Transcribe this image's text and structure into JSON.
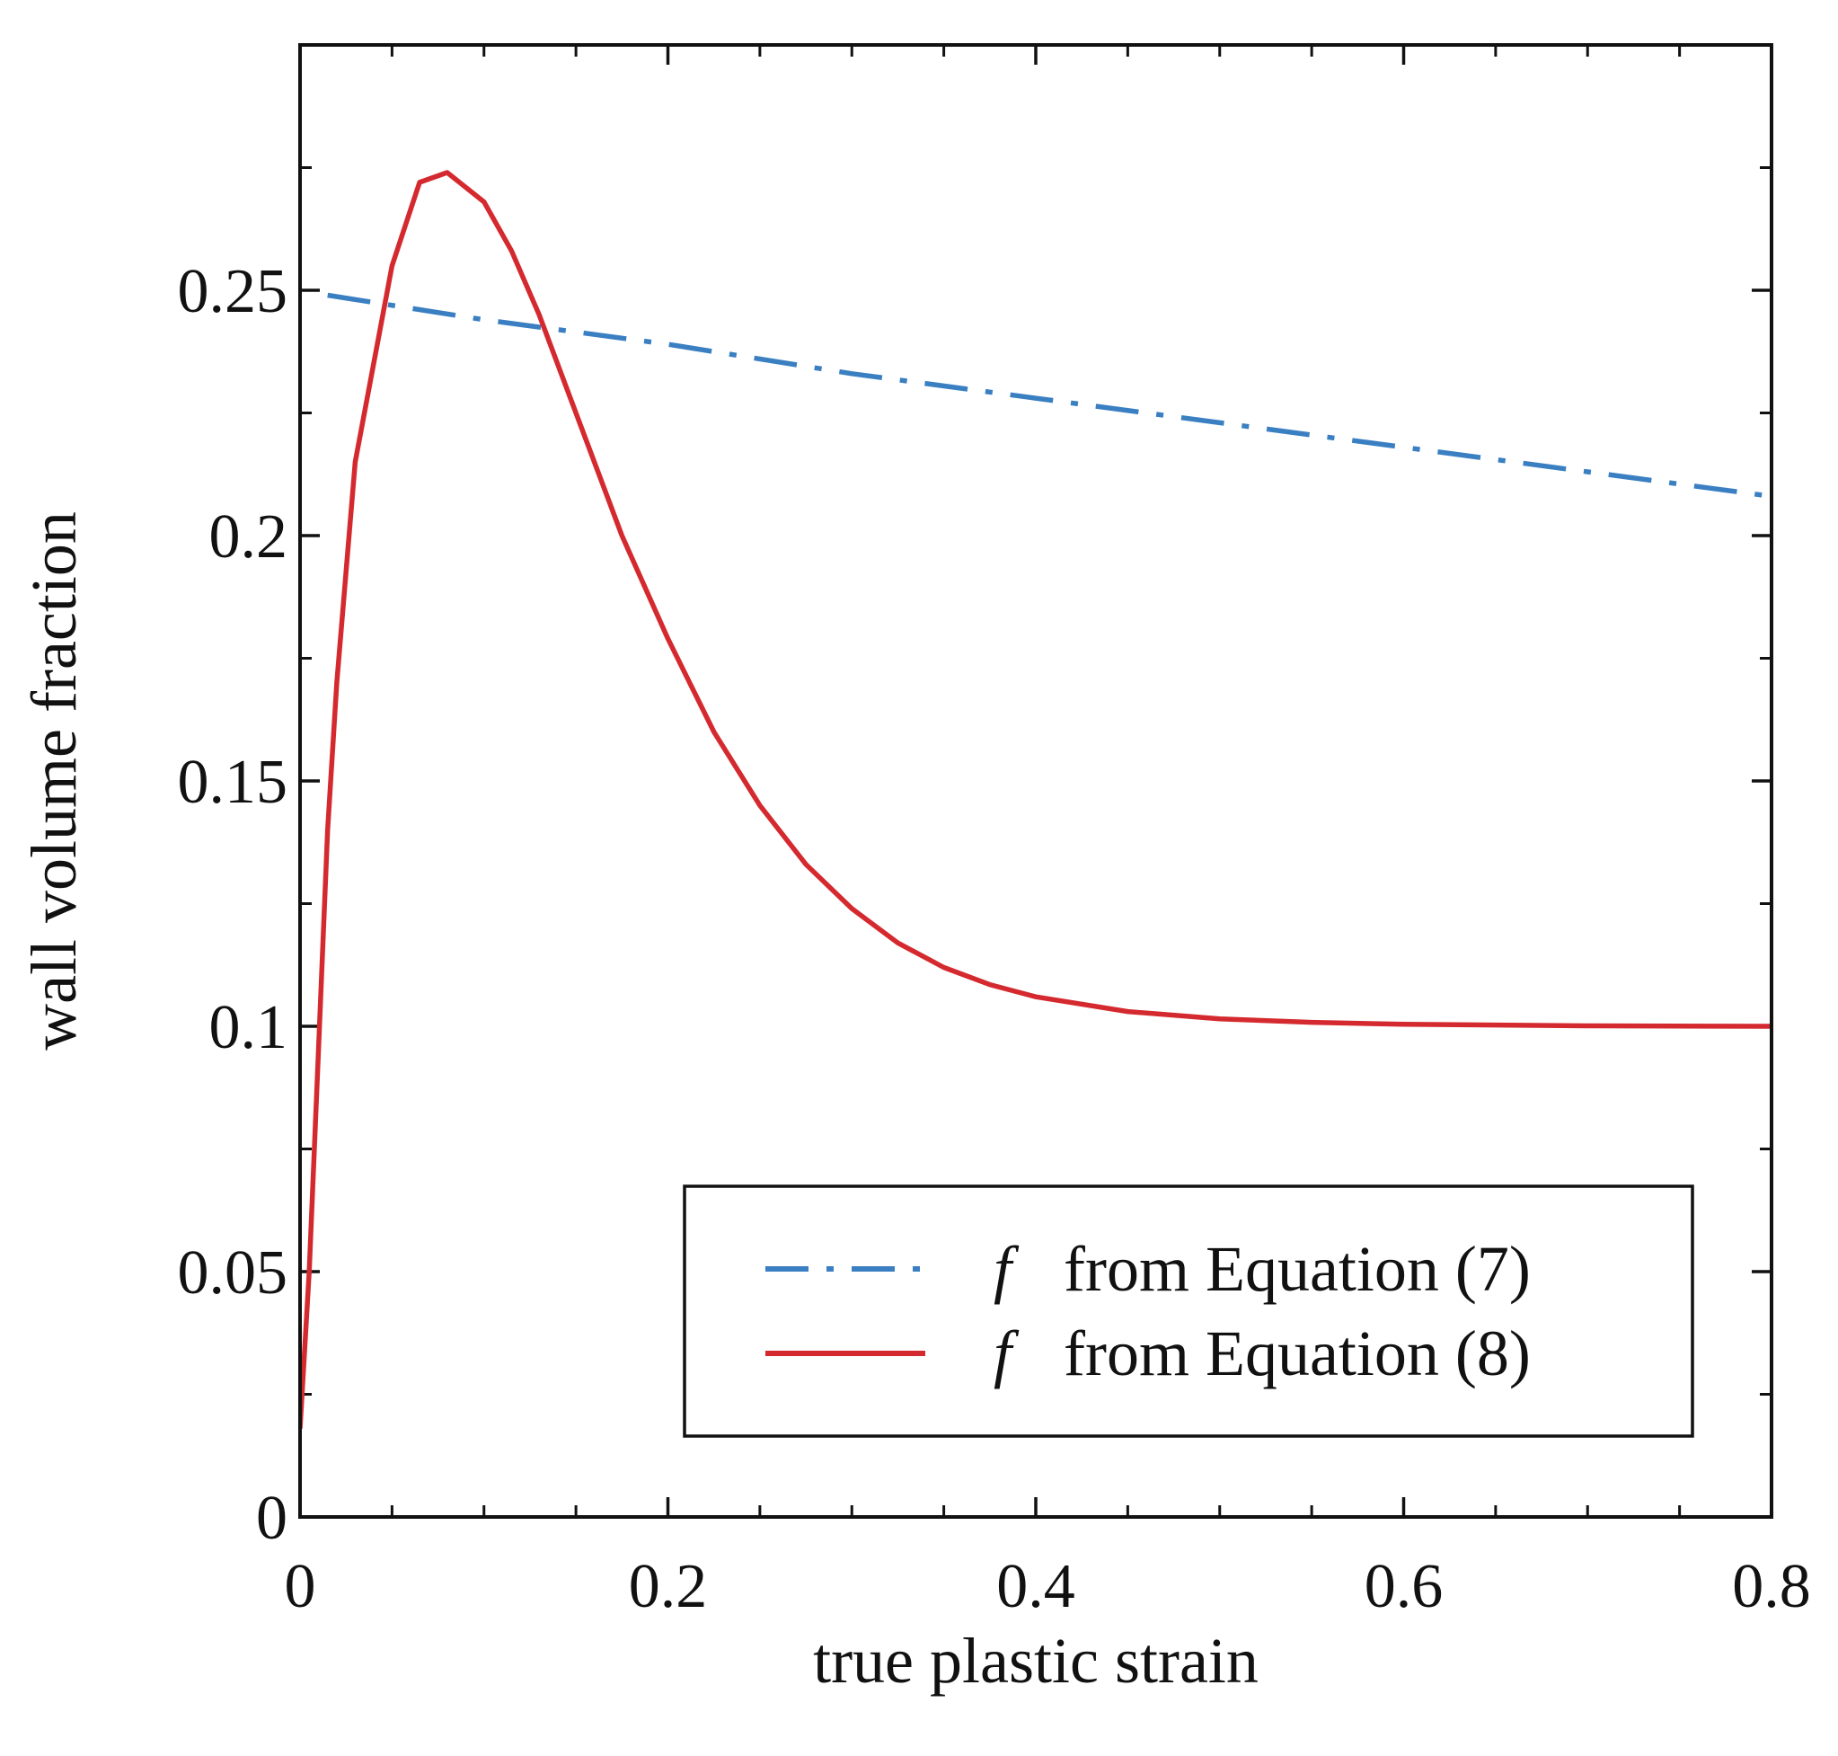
{
  "chart_data": {
    "type": "line",
    "title": "",
    "xlabel": "true plastic strain",
    "ylabel": "wall volume fraction",
    "xlim": [
      0,
      0.8
    ],
    "ylim": [
      0,
      0.3
    ],
    "xticks": [
      0,
      0.2,
      0.4,
      0.6,
      0.8
    ],
    "xtick_labels": [
      "0",
      "0.2",
      "0.4",
      "0.6",
      "0.8"
    ],
    "xminor": [
      0.05,
      0.1,
      0.15,
      0.25,
      0.3,
      0.35,
      0.45,
      0.5,
      0.55,
      0.65,
      0.7,
      0.75
    ],
    "yticks": [
      0,
      0.05,
      0.1,
      0.15,
      0.2,
      0.25
    ],
    "ytick_labels": [
      "0",
      "0.05",
      "0.1",
      "0.15",
      "0.2",
      "0.25"
    ],
    "yminor": [
      0.025,
      0.075,
      0.125,
      0.175,
      0.225,
      0.275
    ],
    "legend_position": "bottom-right",
    "series": [
      {
        "name": "from Equation (7)",
        "symbol": "f",
        "color": "#3a7fc1",
        "style": "dash-dot",
        "x": [
          0.015,
          0.1,
          0.2,
          0.3,
          0.4,
          0.5,
          0.6,
          0.7,
          0.8
        ],
        "y": [
          0.249,
          0.244,
          0.239,
          0.233,
          0.228,
          0.223,
          0.218,
          0.213,
          0.208
        ]
      },
      {
        "name": "from Equation (8)",
        "symbol": "f",
        "color": "#d42a2f",
        "style": "solid",
        "x": [
          0.0,
          0.005,
          0.01,
          0.015,
          0.02,
          0.03,
          0.04,
          0.05,
          0.065,
          0.08,
          0.1,
          0.115,
          0.13,
          0.15,
          0.175,
          0.2,
          0.225,
          0.25,
          0.275,
          0.3,
          0.325,
          0.35,
          0.375,
          0.4,
          0.45,
          0.5,
          0.55,
          0.6,
          0.7,
          0.8
        ],
        "y": [
          0.018,
          0.05,
          0.095,
          0.14,
          0.17,
          0.215,
          0.235,
          0.255,
          0.272,
          0.274,
          0.268,
          0.258,
          0.245,
          0.225,
          0.2,
          0.179,
          0.16,
          0.145,
          0.133,
          0.124,
          0.117,
          0.112,
          0.1085,
          0.106,
          0.103,
          0.1015,
          0.1008,
          0.1004,
          0.1001,
          0.1
        ]
      }
    ]
  }
}
